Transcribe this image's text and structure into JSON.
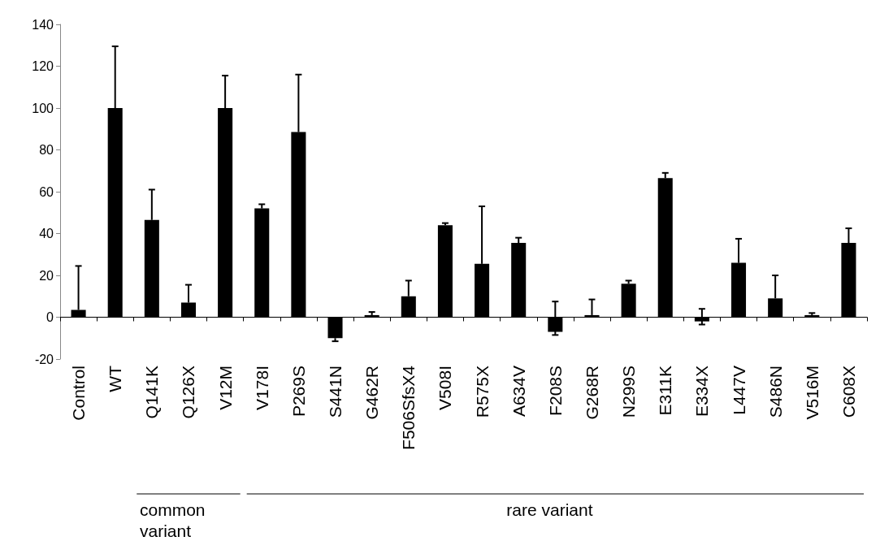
{
  "chart_data": {
    "type": "bar",
    "categories": [
      "Control",
      "WT",
      "Q141K",
      "Q126X",
      "V12M",
      "V178I",
      "P269S",
      "S441N",
      "G462R",
      "F506SfsX4",
      "V508I",
      "R575X",
      "A634V",
      "F208S",
      "G268R",
      "N299S",
      "E311K",
      "E334X",
      "L447V",
      "S486N",
      "V516M",
      "C608X"
    ],
    "series": [
      {
        "color": "#000000",
        "values": [
          3.5,
          100,
          46.5,
          7,
          100,
          52,
          88.5,
          -10,
          1,
          10,
          44,
          25.5,
          35.5,
          -7,
          1,
          16,
          66.5,
          -2,
          26,
          9,
          1,
          35.5
        ],
        "errors": [
          [
            3.5,
            24.5
          ],
          [
            100,
            129.5
          ],
          [
            46.5,
            61
          ],
          [
            7,
            15.5
          ],
          [
            100,
            115.5
          ],
          [
            52,
            54
          ],
          [
            88.5,
            116
          ],
          [
            -11.5,
            -10
          ],
          [
            1,
            2.5
          ],
          [
            10,
            17.5
          ],
          [
            44,
            45
          ],
          [
            25.5,
            53
          ],
          [
            35.5,
            38
          ],
          [
            -8.5,
            7.5
          ],
          [
            1,
            8.5
          ],
          [
            16,
            17.5
          ],
          [
            66.5,
            69
          ],
          [
            -3.5,
            4
          ],
          [
            26,
            37.5
          ],
          [
            9,
            20
          ],
          [
            1,
            2
          ],
          [
            35.5,
            42.5
          ]
        ]
      }
    ],
    "ylim": [
      -20,
      140
    ],
    "yticks": [
      -20,
      0,
      20,
      40,
      60,
      80,
      100,
      120,
      140
    ],
    "annotations": [
      "common variant",
      "rare variant"
    ]
  }
}
